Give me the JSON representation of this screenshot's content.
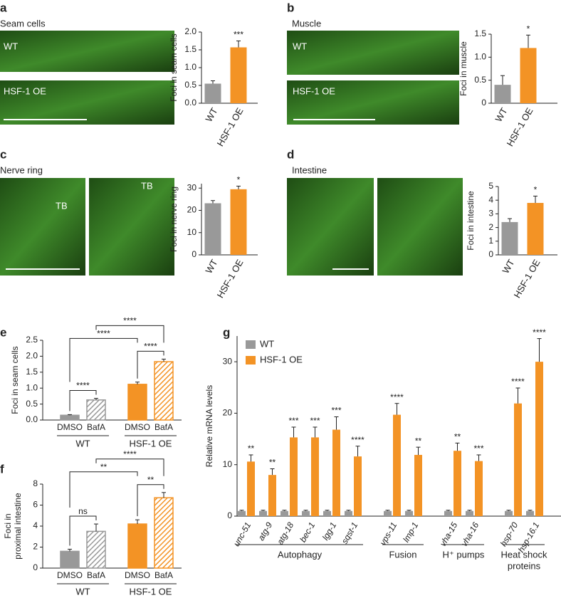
{
  "chart_data": [
    {
      "panel": "a",
      "title": "Seam cells",
      "image_labels": [
        "WT",
        "HSF-1 OE"
      ],
      "type": "bar",
      "categories": [
        "WT",
        "HSF-1 OE"
      ],
      "values": [
        0.55,
        1.57
      ],
      "errors": [
        0.08,
        0.18
      ],
      "significance": [
        null,
        "***"
      ],
      "colors": [
        "#999999",
        "#f39325"
      ],
      "ylabel": "Foci in seam cells",
      "ylim": [
        0,
        2
      ],
      "yticks": [
        {
          "value": 0,
          "label": "0.0"
        },
        0.5,
        {
          "value": 1,
          "label": "1.0"
        },
        1.5,
        {
          "value": 2,
          "label": "2.0"
        }
      ]
    },
    {
      "panel": "b",
      "title": "Muscle",
      "image_labels": [
        "WT",
        "HSF-1 OE"
      ],
      "type": "bar",
      "categories": [
        "WT",
        "HSF-1 OE"
      ],
      "values": [
        0.4,
        1.2
      ],
      "errors": [
        0.2,
        0.28
      ],
      "significance": [
        null,
        "*"
      ],
      "colors": [
        "#999999",
        "#f39325"
      ],
      "ylabel": "Foci in muscle",
      "ylim": [
        0,
        1.5
      ],
      "yticks": [
        0,
        0.5,
        {
          "value": 1,
          "label": "1.0"
        },
        1.5
      ]
    },
    {
      "panel": "c",
      "title": "Nerve ring",
      "image_labels": [
        "TB",
        "TB"
      ],
      "type": "bar",
      "categories": [
        "WT",
        "HSF-1 OE"
      ],
      "values": [
        23.2,
        29.5
      ],
      "errors": [
        1.2,
        1.4
      ],
      "significance": [
        null,
        "*"
      ],
      "colors": [
        "#999999",
        "#f39325"
      ],
      "ylabel": "Foci in nerve ring",
      "ylim": [
        0,
        32
      ],
      "yticks": [
        0,
        10,
        20,
        30
      ]
    },
    {
      "panel": "d",
      "title": "Intestine",
      "type": "bar",
      "categories": [
        "WT",
        "HSF-1 OE"
      ],
      "values": [
        2.4,
        3.8
      ],
      "errors": [
        0.25,
        0.5
      ],
      "significance": [
        null,
        "*"
      ],
      "colors": [
        "#999999",
        "#f39325"
      ],
      "ylabel": "Foci in intestine",
      "ylim": [
        0,
        5
      ],
      "yticks": [
        0,
        1,
        2,
        3,
        4,
        5
      ]
    },
    {
      "panel": "e",
      "type": "bar",
      "groups": [
        {
          "name": "WT",
          "categories": [
            "DMSO",
            "BafA"
          ]
        },
        {
          "name": "HSF-1 OE",
          "categories": [
            "DMSO",
            "BafA"
          ]
        }
      ],
      "values": [
        0.15,
        0.63,
        1.12,
        1.83
      ],
      "errors": [
        0.02,
        0.05,
        0.07,
        0.08
      ],
      "colors": [
        "#999999",
        "#999999",
        "#f39325",
        "#f39325"
      ],
      "hatched": [
        false,
        true,
        false,
        true
      ],
      "comparisons": [
        {
          "between": [
            0,
            1
          ],
          "label": "****"
        },
        {
          "between": [
            2,
            3
          ],
          "label": "****"
        },
        {
          "between": [
            0,
            2
          ],
          "label": "****"
        },
        {
          "between": [
            1,
            3
          ],
          "label": "****"
        }
      ],
      "ylabel": "Foci in seam cells",
      "ylim": [
        0,
        2.5
      ],
      "yticks": [
        {
          "value": 0,
          "label": "0.0"
        },
        0.5,
        {
          "value": 1,
          "label": "1.0"
        },
        1.5,
        {
          "value": 2,
          "label": "2.0"
        },
        2.5
      ]
    },
    {
      "panel": "f",
      "type": "bar",
      "groups": [
        {
          "name": "WT",
          "categories": [
            "DMSO",
            "BafA"
          ]
        },
        {
          "name": "HSF-1 OE",
          "categories": [
            "DMSO",
            "BafA"
          ]
        }
      ],
      "values": [
        1.6,
        3.5,
        4.2,
        6.7
      ],
      "errors": [
        0.2,
        0.7,
        0.4,
        0.5
      ],
      "colors": [
        "#999999",
        "#999999",
        "#f39325",
        "#f39325"
      ],
      "hatched": [
        false,
        true,
        false,
        true
      ],
      "comparisons": [
        {
          "between": [
            0,
            1
          ],
          "label": "ns"
        },
        {
          "between": [
            2,
            3
          ],
          "label": "**"
        },
        {
          "between": [
            0,
            2
          ],
          "label": "**"
        },
        {
          "between": [
            1,
            3
          ],
          "label": "****"
        }
      ],
      "ylabel": [
        "Foci in",
        "proximal intestine"
      ],
      "ylim": [
        0,
        8
      ],
      "yticks": [
        0,
        2,
        4,
        6,
        8
      ]
    },
    {
      "panel": "g",
      "type": "bar",
      "groups": [
        {
          "name": "Autophagy",
          "categories": [
            "unc-51",
            "atg-9",
            "atg-18",
            "bec-1",
            "lgg-1",
            "sqst-1"
          ]
        },
        {
          "name": "Fusion",
          "categories": [
            "vps-11",
            "lmp-1"
          ]
        },
        {
          "name": "H⁺ pumps",
          "categories": [
            "vha-15",
            "vha-16"
          ]
        },
        {
          "name": [
            "Heat shock",
            "proteins"
          ],
          "categories": [
            "hsp-70",
            "hsp-16.1"
          ]
        }
      ],
      "series": [
        {
          "name": "WT",
          "color": "#999999",
          "values": [
            1,
            1,
            1,
            1,
            1,
            1,
            1,
            1,
            1,
            1,
            1,
            1
          ],
          "errors": [
            0.15,
            0.15,
            0.15,
            0.15,
            0.15,
            0.15,
            0.15,
            0.15,
            0.15,
            0.15,
            0.15,
            0.15
          ]
        },
        {
          "name": "HSF-1 OE",
          "color": "#f39325",
          "values": [
            10.6,
            8,
            15.3,
            15.3,
            16.8,
            11.6,
            19.7,
            11.9,
            12.7,
            10.7,
            21.9,
            30
          ],
          "errors": [
            1.3,
            1.2,
            2,
            2,
            2.5,
            2,
            2.2,
            1.5,
            1.5,
            1.2,
            3,
            4.5
          ],
          "significance": [
            "**",
            "**",
            "***",
            "***",
            "***",
            "****",
            "****",
            "**",
            "**",
            "***",
            "****",
            "****"
          ]
        }
      ],
      "ylabel": "Relative mRNA levels",
      "ylim": [
        0,
        35
      ],
      "yticks": [
        0,
        10,
        20,
        30
      ]
    }
  ]
}
